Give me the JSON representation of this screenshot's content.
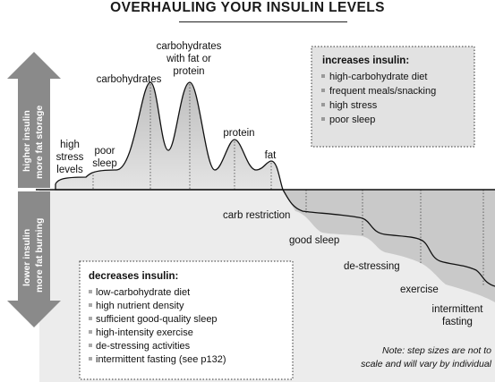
{
  "title": "OVERHAULING YOUR INSULIN LEVELS",
  "arrow_up": {
    "line1": "higher insulin",
    "line2": "more fat storage"
  },
  "arrow_down": {
    "line1": "lower insulin",
    "line2": "more fat burning"
  },
  "peaks": {
    "high_stress": [
      "high",
      "stress",
      "levels"
    ],
    "poor_sleep": [
      "poor",
      "sleep"
    ],
    "carbohydrates": "carbohydrates",
    "carbs_with_fat": [
      "carbohydrates",
      "with fat or",
      "protein"
    ],
    "protein": "protein",
    "fat": "fat"
  },
  "steps": {
    "carb_restriction": "carb restriction",
    "good_sleep": "good sleep",
    "de_stressing": "de-stressing",
    "exercise": "exercise",
    "intermittent_fasting": [
      "intermittent",
      "fasting"
    ]
  },
  "increases_box": {
    "heading": "increases insulin:",
    "items": [
      "high-carbohydrate diet",
      "frequent meals/snacking",
      "high stress",
      "poor sleep"
    ]
  },
  "decreases_box": {
    "heading": "decreases insulin:",
    "items": [
      "low-carbohydrate diet",
      "high nutrient density",
      "sufficient good-quality sleep",
      "high-intensity exercise",
      "de-stressing activities",
      "intermittent fasting (see p132)"
    ]
  },
  "note": [
    "Note: step sizes are not to",
    "scale and will vary by individual"
  ],
  "colors": {
    "area_top": "#cfcfcf",
    "area_bottom": "#e6e6e6",
    "lower_fill": "#e9e9e9",
    "arrow": "#8a8a8a",
    "box_bg": "#e2e2e2"
  }
}
